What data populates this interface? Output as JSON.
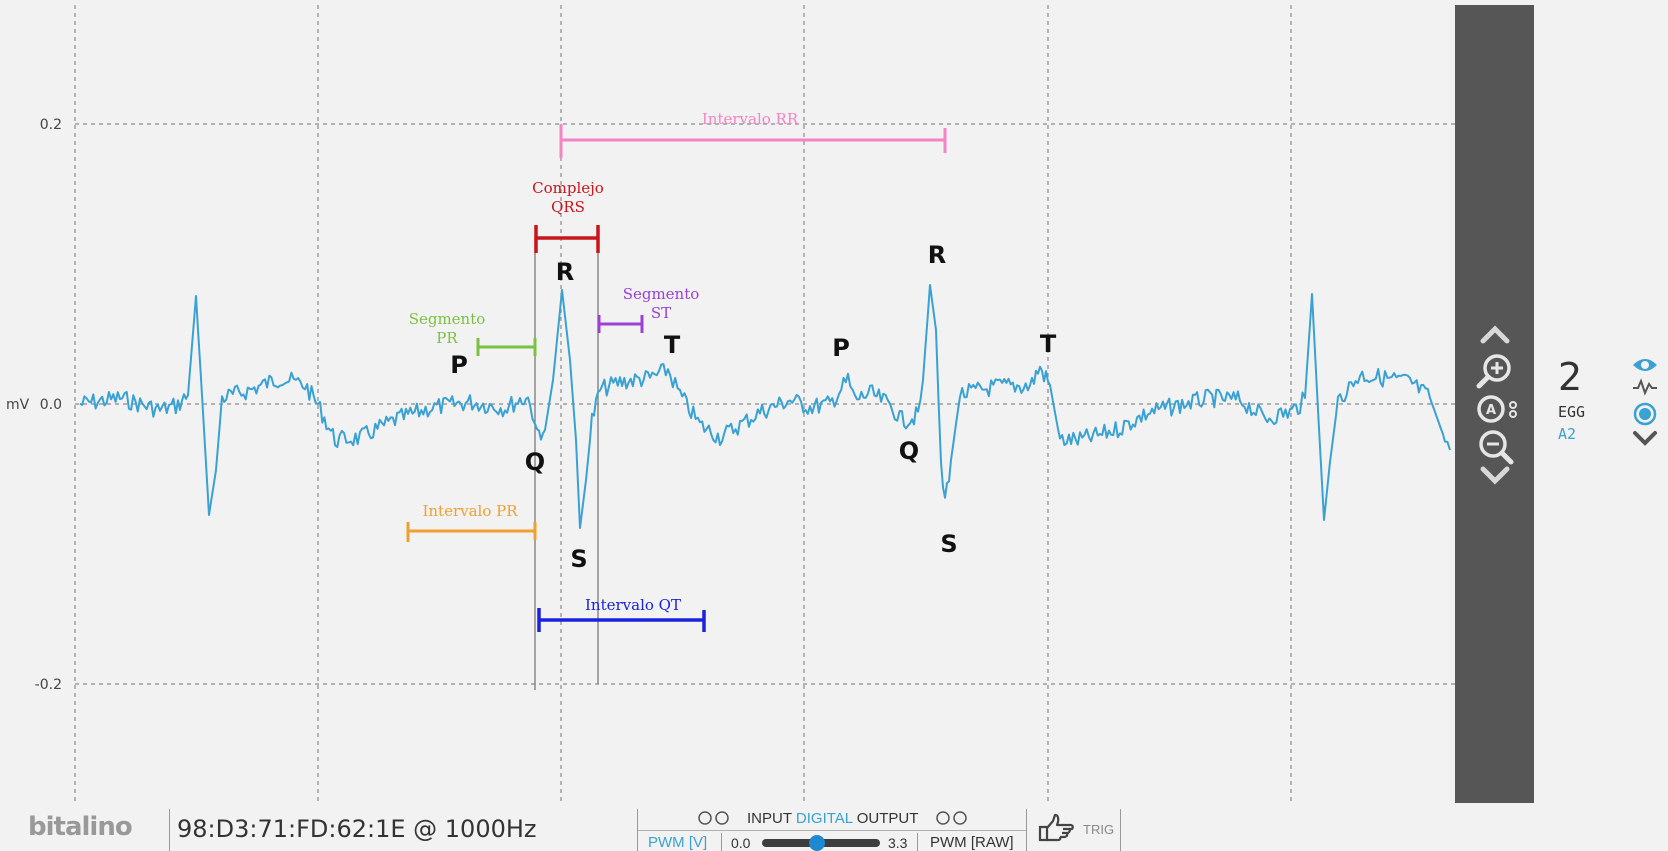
{
  "plot": {
    "y_ticks": [
      {
        "value": 0.2,
        "label": "0.2"
      },
      {
        "value": 0.0,
        "label": "0.0"
      },
      {
        "value": -0.2,
        "label": "-0.2"
      }
    ],
    "unit_label": "mV",
    "annotations": {
      "rr": "Intervalo RR",
      "qrs_line1": "Complejo",
      "qrs_line2": "QRS",
      "st_line1": "Segmento",
      "st_line2": "ST",
      "pr_seg_line1": "Segmento",
      "pr_seg_line2": "PR",
      "pr_int": "Intervalo PR",
      "qt": "Intervalo QT"
    },
    "wave_labels": {
      "p1": "P",
      "q1": "Q",
      "r1": "R",
      "s1": "S",
      "t1": "T",
      "p2": "P",
      "q2": "Q",
      "r2": "R",
      "s2": "S",
      "t2": "T"
    },
    "colors": {
      "signal": "#3aa1d4",
      "rr": "#f484c4",
      "qrs": "#c8151b",
      "st": "#9b41d4",
      "pr_seg": "#7ac143",
      "pr_int": "#f0a030",
      "qt": "#1a22e0"
    }
  },
  "right_panel": {
    "channel_number": "2",
    "channel_name": "EGG",
    "channel_input": "A2"
  },
  "bottom_bar": {
    "logo": "bitalino",
    "device": "98:D3:71:FD:62:1E @ 1000Hz",
    "input_label": "INPUT",
    "digital_label": "DIGITAL",
    "output_label": "OUTPUT",
    "pwm_v_label": "PWM [V]",
    "slider_min": "0.0",
    "slider_max": "3.3",
    "slider_value": 0.47,
    "pwm_raw_label": "PWM [RAW]",
    "trig_label": "TRIG"
  }
}
